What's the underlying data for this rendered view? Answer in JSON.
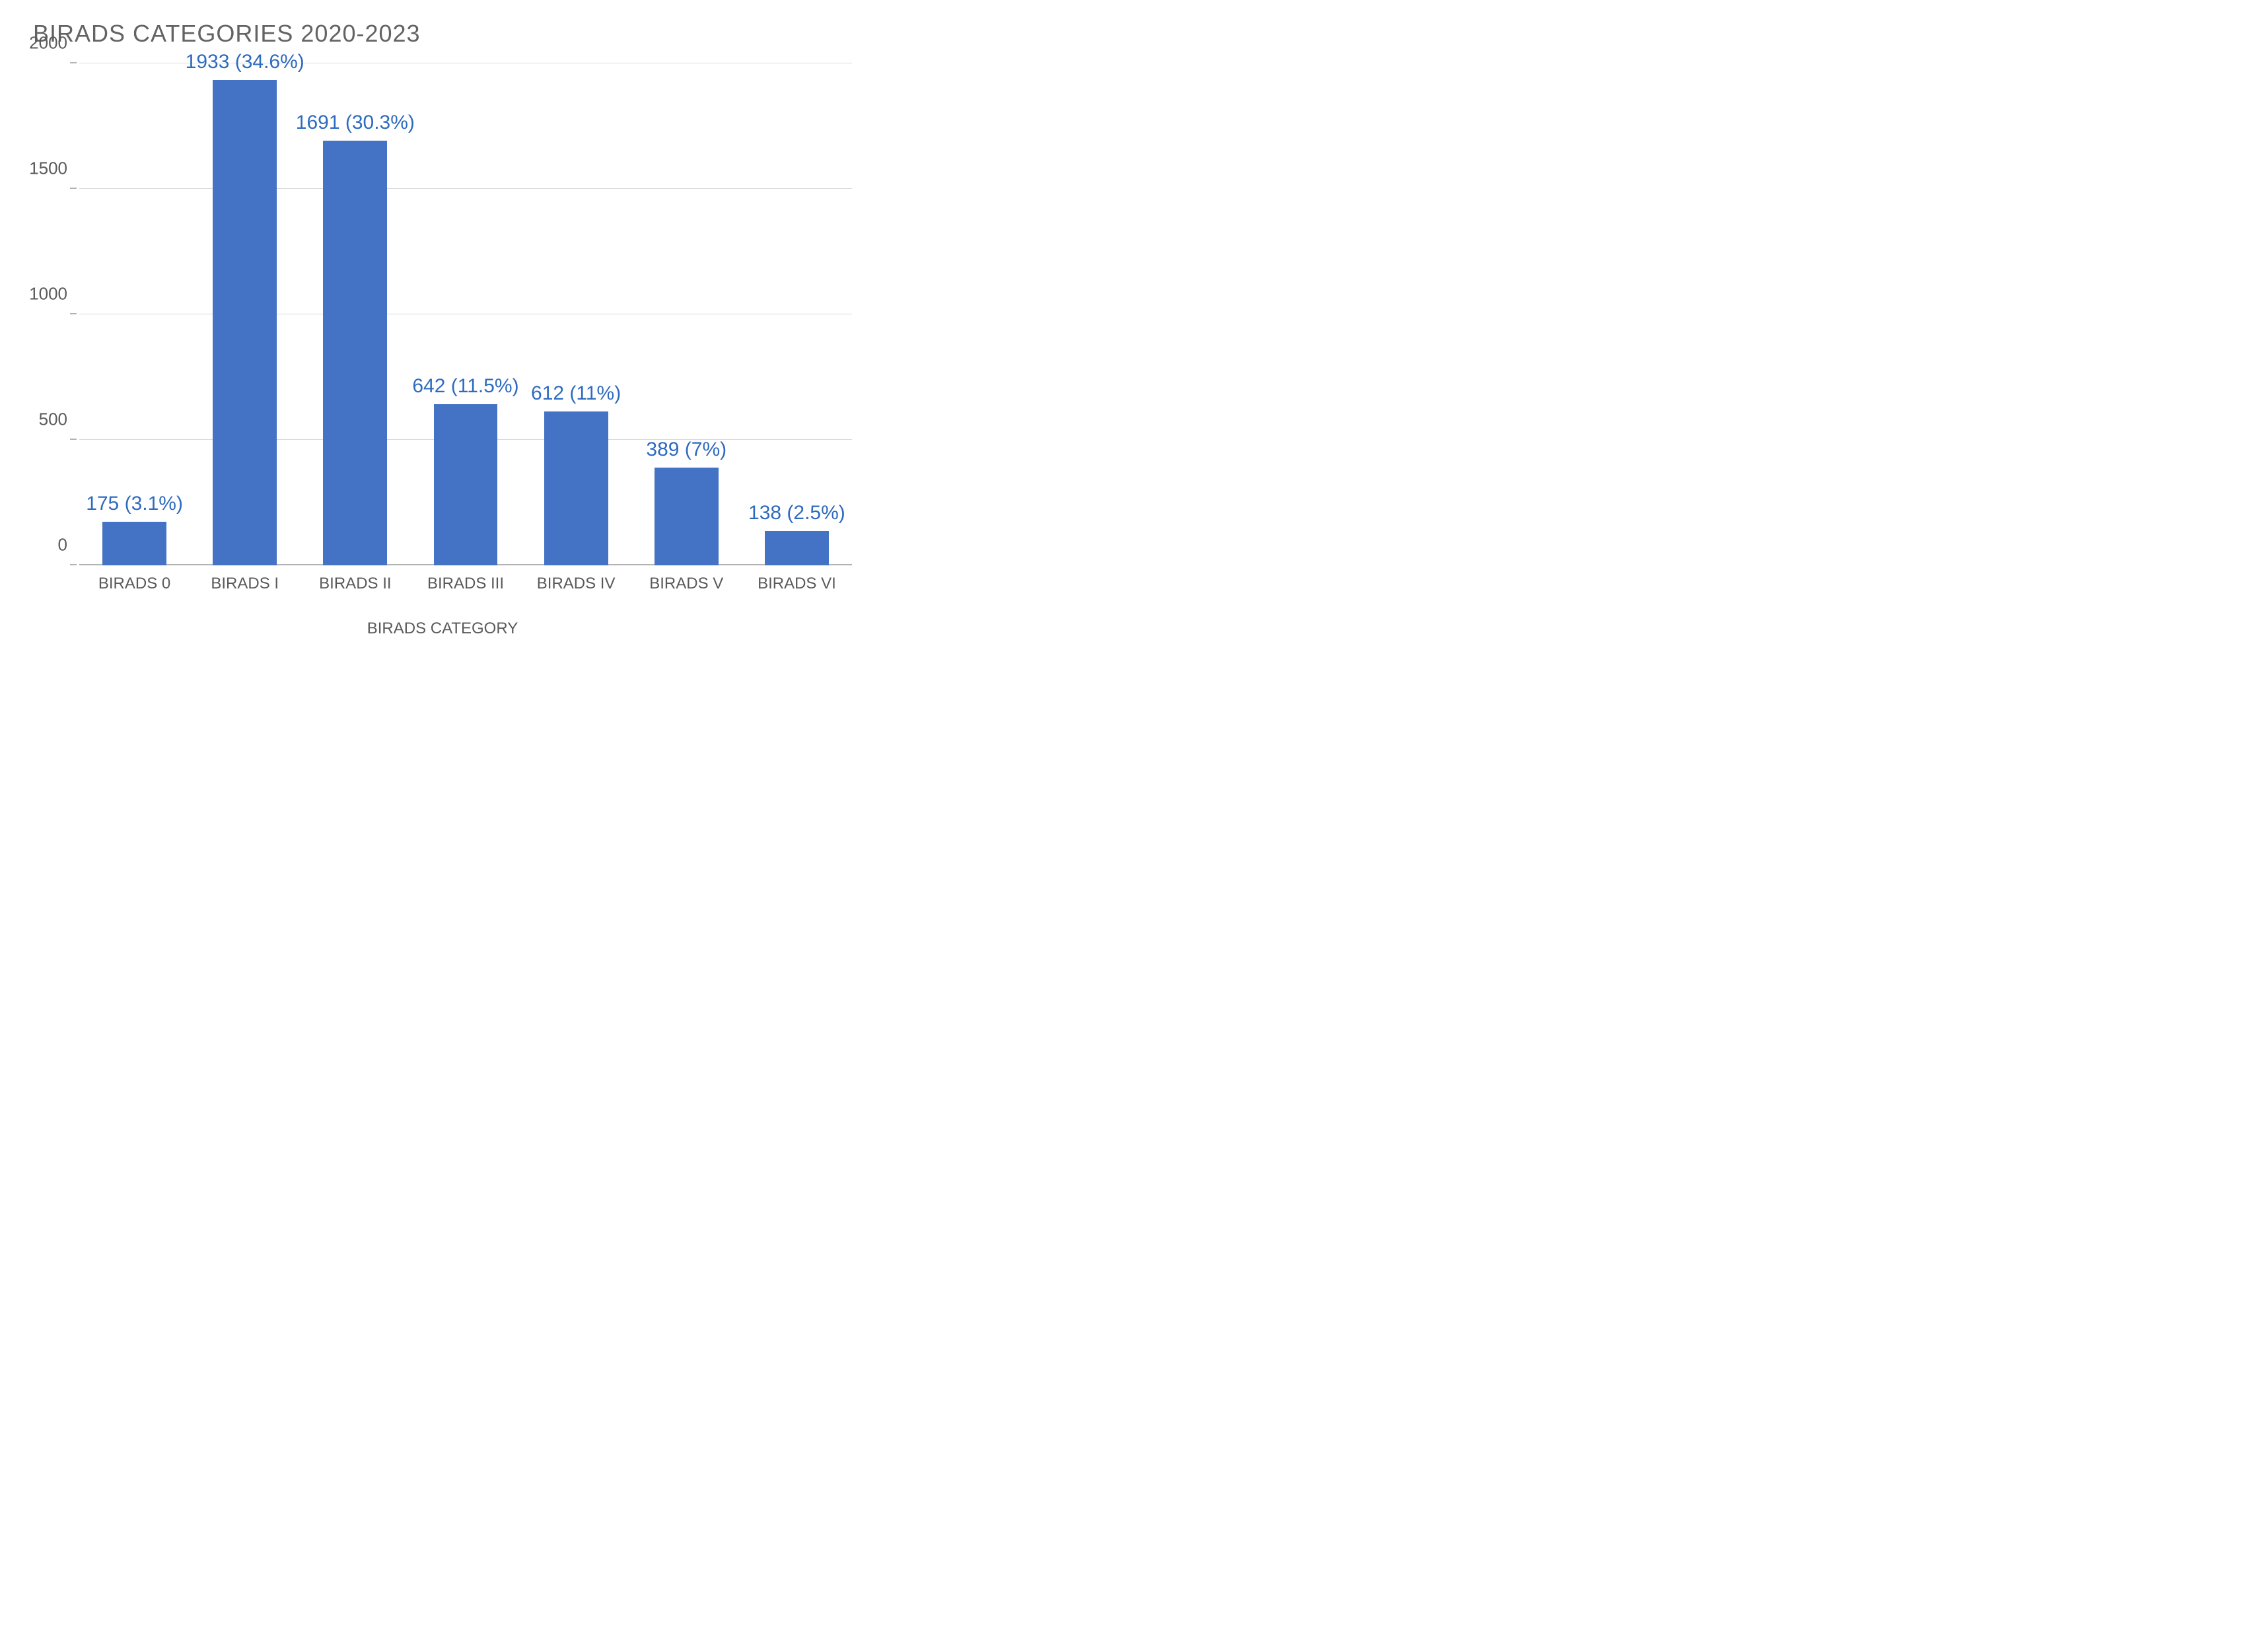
{
  "chart": {
    "type": "bar",
    "title": "BIRADS CATEGORIES 2020-2023",
    "title_color": "#636363",
    "title_fontsize": 36,
    "xaxis_title": "BIRADS CATEGORY",
    "axis_label_color": "#5a5a5a",
    "axis_label_fontsize": 26,
    "xtick_fontsize": 24,
    "data_label_color": "#2e6bbf",
    "data_label_fontsize": 30,
    "bar_color": "#4472c4",
    "grid_color": "#d9d9d9",
    "baseline_color": "#b3b3b3",
    "background_color": "#ffffff",
    "ylim_min": 0,
    "ylim_max": 2000,
    "ytick_step": 500,
    "yticks": [
      0,
      500,
      1000,
      1500,
      2000
    ],
    "bar_width_ratio": 0.58,
    "categories": [
      "BIRADS 0",
      "BIRADS I",
      "BIRADS II",
      "BIRADS III",
      "BIRADS IV",
      "BIRADS V",
      "BIRADS VI"
    ],
    "values": [
      175,
      1933,
      1691,
      642,
      612,
      389,
      138
    ],
    "percentages": [
      "3.1%",
      "34.6%",
      "30.3%",
      "11.5%",
      "11%",
      "7%",
      "2.5%"
    ],
    "data_labels": [
      "175 (3.1%)",
      "1933 (34.6%)",
      "1691 (30.3%)",
      "642 (11.5%)",
      "612 (11%)",
      "389 (7%)",
      "138 (2.5%)"
    ]
  }
}
